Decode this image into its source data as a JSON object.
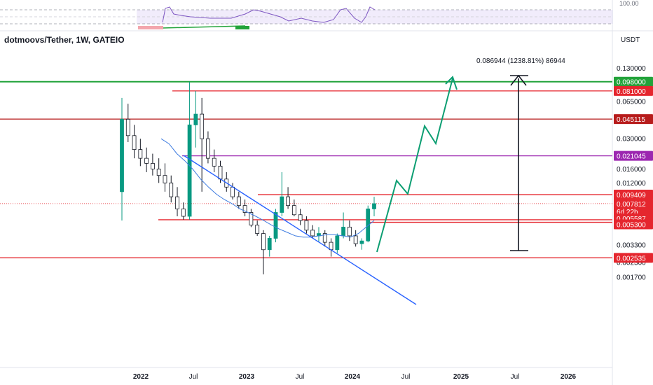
{
  "header": {
    "symbol_title": "dotmoovs/Tether, 1W, GATEIO",
    "currency": "USDT",
    "rsi_top_label": "100.00"
  },
  "measure_label": "0.086944 (1238.81%) 86944",
  "colors": {
    "up": "#089981",
    "down": "#131722",
    "red_level": "#e5262e",
    "green_level": "#22a33a",
    "purple_level": "#9c27b0",
    "trendline": "#2962ff",
    "ma": "#3d7be0",
    "projection": "#0c9e72",
    "rsi": "#7e57c2"
  },
  "chart_data": {
    "type": "candlestick",
    "title": "dotmoovs/Tether, 1W, GATEIO",
    "y_scale": "log",
    "y_ticks": [
      "0.130000",
      "0.065000",
      "0.030000",
      "0.016000",
      "0.012000",
      "0.005300",
      "0.003300",
      "0.002300",
      "0.001700"
    ],
    "x_ticks": [
      "2022",
      "Jul",
      "2023",
      "Jul",
      "2024",
      "Jul",
      "2025",
      "Jul",
      "2026"
    ],
    "price_levels": [
      {
        "value": "0.098000",
        "color": "green"
      },
      {
        "value": "0.081000",
        "color": "red"
      },
      {
        "value": "0.045115",
        "color": "darkred"
      },
      {
        "value": "0.021045",
        "color": "purple"
      },
      {
        "value": "0.009409",
        "color": "red"
      },
      {
        "value": "0.007812",
        "color": "current",
        "note": "6d 22h"
      },
      {
        "value": "0.005587",
        "color": "red"
      },
      {
        "value": "0.005300",
        "color": "red"
      },
      {
        "value": "0.002535",
        "color": "red"
      }
    ],
    "candles_approx": [
      {
        "o": 0.01,
        "h": 0.07,
        "l": 0.0055,
        "c": 0.045
      },
      {
        "o": 0.045,
        "h": 0.062,
        "l": 0.028,
        "c": 0.032
      },
      {
        "o": 0.032,
        "h": 0.04,
        "l": 0.02,
        "c": 0.024
      },
      {
        "o": 0.024,
        "h": 0.03,
        "l": 0.017,
        "c": 0.02
      },
      {
        "o": 0.02,
        "h": 0.025,
        "l": 0.015,
        "c": 0.018
      },
      {
        "o": 0.018,
        "h": 0.022,
        "l": 0.014,
        "c": 0.016
      },
      {
        "o": 0.016,
        "h": 0.02,
        "l": 0.012,
        "c": 0.014
      },
      {
        "o": 0.014,
        "h": 0.018,
        "l": 0.01,
        "c": 0.012
      },
      {
        "o": 0.012,
        "h": 0.014,
        "l": 0.008,
        "c": 0.009
      },
      {
        "o": 0.009,
        "h": 0.011,
        "l": 0.006,
        "c": 0.007
      },
      {
        "o": 0.007,
        "h": 0.008,
        "l": 0.0056,
        "c": 0.006
      },
      {
        "o": 0.006,
        "h": 0.098,
        "l": 0.0056,
        "c": 0.04
      },
      {
        "o": 0.04,
        "h": 0.081,
        "l": 0.025,
        "c": 0.05
      },
      {
        "o": 0.05,
        "h": 0.07,
        "l": 0.01,
        "c": 0.03
      },
      {
        "o": 0.03,
        "h": 0.035,
        "l": 0.018,
        "c": 0.02
      },
      {
        "o": 0.02,
        "h": 0.024,
        "l": 0.015,
        "c": 0.017
      },
      {
        "o": 0.017,
        "h": 0.019,
        "l": 0.012,
        "c": 0.013
      },
      {
        "o": 0.013,
        "h": 0.015,
        "l": 0.01,
        "c": 0.011
      },
      {
        "o": 0.011,
        "h": 0.012,
        "l": 0.0085,
        "c": 0.009
      },
      {
        "o": 0.009,
        "h": 0.01,
        "l": 0.007,
        "c": 0.0075
      },
      {
        "o": 0.0075,
        "h": 0.0085,
        "l": 0.006,
        "c": 0.0065
      },
      {
        "o": 0.0065,
        "h": 0.007,
        "l": 0.0048,
        "c": 0.005
      },
      {
        "o": 0.005,
        "h": 0.0055,
        "l": 0.004,
        "c": 0.0042
      },
      {
        "o": 0.0042,
        "h": 0.0045,
        "l": 0.0018,
        "c": 0.003
      },
      {
        "o": 0.003,
        "h": 0.004,
        "l": 0.0026,
        "c": 0.0038
      },
      {
        "o": 0.0038,
        "h": 0.007,
        "l": 0.0035,
        "c": 0.0065
      },
      {
        "o": 0.0065,
        "h": 0.015,
        "l": 0.006,
        "c": 0.009
      },
      {
        "o": 0.009,
        "h": 0.011,
        "l": 0.007,
        "c": 0.0075
      },
      {
        "o": 0.0075,
        "h": 0.0085,
        "l": 0.006,
        "c": 0.0062
      },
      {
        "o": 0.0062,
        "h": 0.007,
        "l": 0.005,
        "c": 0.0055
      },
      {
        "o": 0.0055,
        "h": 0.006,
        "l": 0.0042,
        "c": 0.0045
      },
      {
        "o": 0.0045,
        "h": 0.005,
        "l": 0.0038,
        "c": 0.004
      },
      {
        "o": 0.004,
        "h": 0.0048,
        "l": 0.0035,
        "c": 0.0042
      },
      {
        "o": 0.0042,
        "h": 0.0045,
        "l": 0.0032,
        "c": 0.0035
      },
      {
        "o": 0.0035,
        "h": 0.0038,
        "l": 0.0026,
        "c": 0.003
      },
      {
        "o": 0.003,
        "h": 0.0042,
        "l": 0.0028,
        "c": 0.004
      },
      {
        "o": 0.004,
        "h": 0.0065,
        "l": 0.0038,
        "c": 0.0048
      },
      {
        "o": 0.0048,
        "h": 0.0055,
        "l": 0.0036,
        "c": 0.004
      },
      {
        "o": 0.004,
        "h": 0.0045,
        "l": 0.0032,
        "c": 0.0034
      },
      {
        "o": 0.0034,
        "h": 0.0038,
        "l": 0.003,
        "c": 0.0036
      },
      {
        "o": 0.0036,
        "h": 0.0075,
        "l": 0.0035,
        "c": 0.007
      },
      {
        "o": 0.007,
        "h": 0.009,
        "l": 0.006,
        "c": 0.0078
      }
    ],
    "ma_approx": [
      0.03,
      0.027,
      0.022,
      0.019,
      0.016,
      0.013,
      0.011,
      0.0095,
      0.0085,
      0.0078,
      0.007,
      0.0065,
      0.006,
      0.0055,
      0.005,
      0.0046,
      0.0043,
      0.004,
      0.0039,
      0.0039,
      0.004,
      0.0041,
      0.0041,
      0.004,
      0.0039,
      0.0042,
      0.0048,
      0.0055
    ],
    "rsi_panel": {
      "upper": 70,
      "lower": 30
    }
  }
}
